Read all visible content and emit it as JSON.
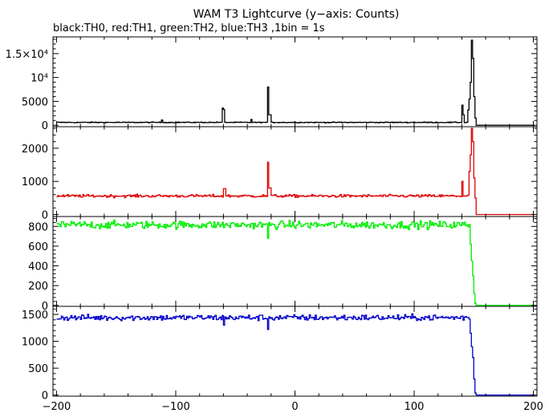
{
  "chart_data": {
    "type": "line",
    "title": "WAM T3 Lightcurve (y−axis: Counts)",
    "subtitle": "black:TH0, red:TH1, green:TH2, blue:TH3 ,1bin = 1s",
    "xlim": [
      -203,
      203
    ],
    "x_ticks": [
      -200,
      -100,
      0,
      100,
      200
    ],
    "x_tick_labels": [
      "−200",
      "−100",
      "0",
      "100",
      "200"
    ],
    "grid": false,
    "panels": [
      {
        "name": "TH0",
        "color": "#000000",
        "ylim": [
          -300,
          18500
        ],
        "y_ticks": [
          0,
          5000,
          10000,
          15000
        ],
        "y_tick_labels": [
          "0",
          "5000",
          "10⁴",
          "1.5×10⁴"
        ],
        "baseline": 600,
        "noise": 60,
        "post_level": 0,
        "features": [
          {
            "x": -112,
            "w": 1,
            "v": 1100
          },
          {
            "x": -61,
            "w": 2,
            "v": 3600
          },
          {
            "x": -60,
            "w": 1,
            "v": 3300
          },
          {
            "x": -37,
            "w": 1,
            "v": 1200
          },
          {
            "x": -23,
            "w": 1,
            "v": 8000
          },
          {
            "x": -22,
            "w": 2,
            "v": 2200
          },
          {
            "x": 140,
            "w": 1,
            "v": 4200
          },
          {
            "x": 141,
            "w": 1,
            "v": 2200
          },
          {
            "x": 145,
            "w": 1,
            "v": 3200
          },
          {
            "x": 146,
            "w": 1,
            "v": 5500
          },
          {
            "x": 147,
            "w": 1,
            "v": 9000
          },
          {
            "x": 148,
            "w": 1,
            "v": 17800
          },
          {
            "x": 149,
            "w": 1,
            "v": 14000
          },
          {
            "x": 150,
            "w": 1,
            "v": 6000
          },
          {
            "x": 151,
            "w": 1,
            "v": 1500
          }
        ]
      },
      {
        "name": "TH1",
        "color": "#e00000",
        "ylim": [
          -60,
          2650
        ],
        "y_ticks": [
          0,
          1000,
          2000
        ],
        "y_tick_labels": [
          "0",
          "1000",
          "2000"
        ],
        "baseline": 560,
        "noise": 30,
        "post_level": 0,
        "features": [
          {
            "x": -60,
            "w": 2,
            "v": 780
          },
          {
            "x": -23,
            "w": 1,
            "v": 1580
          },
          {
            "x": -22,
            "w": 2,
            "v": 800
          },
          {
            "x": 140,
            "w": 1,
            "v": 1000
          },
          {
            "x": 146,
            "w": 1,
            "v": 1300
          },
          {
            "x": 147,
            "w": 1,
            "v": 1800
          },
          {
            "x": 148,
            "w": 1,
            "v": 2600
          },
          {
            "x": 149,
            "w": 1,
            "v": 2200
          },
          {
            "x": 150,
            "w": 1,
            "v": 1100
          },
          {
            "x": 151,
            "w": 1,
            "v": 500
          }
        ]
      },
      {
        "name": "TH2",
        "color": "#00ee00",
        "ylim": [
          -10,
          900
        ],
        "y_ticks": [
          0,
          200,
          400,
          600,
          800
        ],
        "y_tick_labels": [
          "0",
          "200",
          "400",
          "600",
          "800"
        ],
        "baseline": 815,
        "noise": 28,
        "post_level": 0,
        "features": [
          {
            "x": -23,
            "w": 1,
            "v": 680
          },
          {
            "x": 147,
            "w": 1,
            "v": 620
          },
          {
            "x": 148,
            "w": 1,
            "v": 450
          },
          {
            "x": 149,
            "w": 1,
            "v": 300
          },
          {
            "x": 150,
            "w": 1,
            "v": 120
          },
          {
            "x": 151,
            "w": 1,
            "v": 20
          }
        ]
      },
      {
        "name": "TH3",
        "color": "#0000cc",
        "ylim": [
          -20,
          1650
        ],
        "y_ticks": [
          0,
          500,
          1000,
          1500
        ],
        "y_tick_labels": [
          "0",
          "500",
          "1000",
          "1500"
        ],
        "baseline": 1440,
        "noise": 40,
        "post_level": 0,
        "features": [
          {
            "x": -60,
            "w": 1,
            "v": 1300
          },
          {
            "x": -23,
            "w": 1,
            "v": 1220
          },
          {
            "x": 147,
            "w": 1,
            "v": 1150
          },
          {
            "x": 148,
            "w": 1,
            "v": 900
          },
          {
            "x": 149,
            "w": 1,
            "v": 700
          },
          {
            "x": 150,
            "w": 1,
            "v": 300
          },
          {
            "x": 151,
            "w": 1,
            "v": 40
          }
        ]
      }
    ],
    "x_range": [
      -200,
      200
    ],
    "step": 1,
    "cutoff_x": 152
  }
}
